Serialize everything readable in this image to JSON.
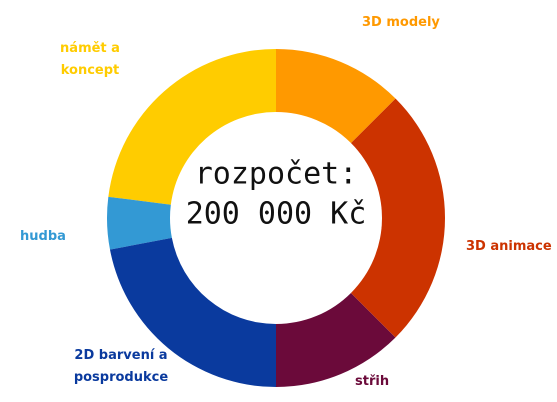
{
  "chart_data": {
    "type": "donut",
    "center_text": [
      "rozpočet:",
      "200 000 Kč"
    ],
    "categories": [
      "3D modely",
      "3D animace",
      "střih",
      "2D barvení a posprodukce",
      "hudba",
      "námět a koncept"
    ],
    "values": [
      12.5,
      25,
      12.5,
      22,
      5,
      23
    ],
    "colors": [
      "#ff9900",
      "#cc3300",
      "#6b0a3a",
      "#0a3a9e",
      "#3399d4",
      "#ffcc00"
    ]
  }
}
